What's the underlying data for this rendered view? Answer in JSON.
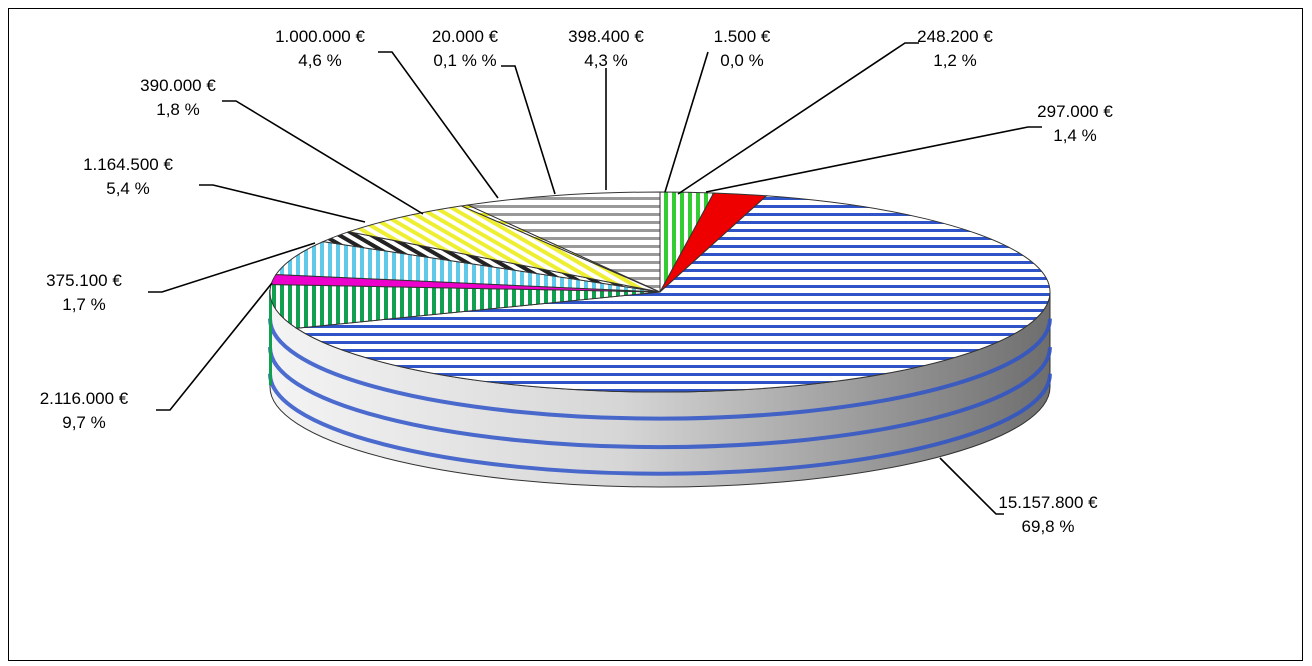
{
  "chart_data": {
    "type": "pie",
    "title": "",
    "slices": [
      {
        "value_label": "1.500 €",
        "percent_label": "0,0 %",
        "value": 1500,
        "share": 2.2,
        "color": "#33cc33",
        "pattern": "vertical"
      },
      {
        "value_label": "248.200 €",
        "percent_label": "1,2 %",
        "value": 248200,
        "share": 2.2,
        "color": "#ee0000",
        "pattern": "solid"
      },
      {
        "value_label": "15.157.800 €",
        "percent_label": "69,8 %",
        "value": 15157800,
        "share": 64.7,
        "color": "#2f54c8",
        "pattern": "horizontal"
      },
      {
        "value_label": "2.116.000 €",
        "percent_label": "9,7 %",
        "value": 2116000,
        "share": 7.1,
        "color": "#10a050",
        "pattern": "vertical"
      },
      {
        "value_label": "375.100 €",
        "percent_label": "1,7 %",
        "value": 375100,
        "share": 1.6,
        "color": "#ee00cc",
        "pattern": "solid"
      },
      {
        "value_label": "1.164.500 €",
        "percent_label": "5,4 %",
        "value": 1164500,
        "share": 5.6,
        "color": "#60c8e8",
        "pattern": "vertical"
      },
      {
        "value_label": "390.000 €",
        "percent_label": "1,8 %",
        "value": 390000,
        "share": 1.9,
        "color": "#222222",
        "pattern": "diagonal"
      },
      {
        "value_label": "1.000.000 €",
        "percent_label": "4,6 %",
        "value": 1000000,
        "share": 6.2,
        "color": "#eeee33",
        "pattern": "diagonal"
      },
      {
        "value_label": "20.000 €",
        "percent_label": "0,1 % %",
        "value": 20000,
        "share": 0.3,
        "color": "#dddd22",
        "pattern": "horizontal"
      },
      {
        "value_label": "398.400 €",
        "percent_label": "4,3 %",
        "value": 398400,
        "share": 8.2,
        "color": "#999999",
        "pattern": "horizontal"
      }
    ],
    "label_order": [
      "1.500 €",
      "248.200 €",
      "297.000 €",
      "15.157.800 €",
      "2.116.000 €",
      "375.100 €",
      "1.164.500 €",
      "390.000 €",
      "1.000.000 €",
      "20.000 €",
      "398.400 €"
    ],
    "extra_labels": [
      {
        "value_label": "297.000 €",
        "percent_label": "1,4 %",
        "value": 297000
      }
    ],
    "legend": "none",
    "style": "3d-pie"
  }
}
